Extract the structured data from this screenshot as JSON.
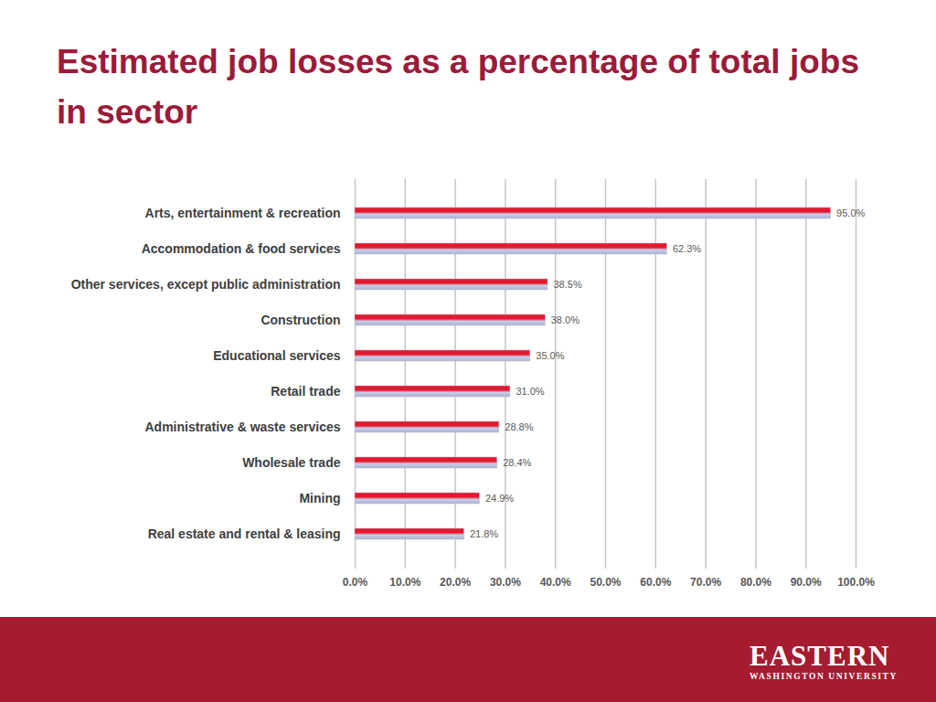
{
  "chart_data": {
    "type": "bar",
    "orientation": "horizontal",
    "title": "Estimated job losses as a percentage of total jobs in sector",
    "categories": [
      "Arts, entertainment & recreation",
      "Accommodation & food services",
      "Other services, except public administration",
      "Construction",
      "Educational services",
      "Retail trade",
      "Administrative & waste services",
      "Wholesale trade",
      "Mining",
      "Real estate and rental & leasing"
    ],
    "values": [
      95.0,
      62.3,
      38.5,
      38.0,
      35.0,
      31.0,
      28.8,
      28.4,
      24.9,
      21.8
    ],
    "value_labels": [
      "95.0%",
      "62.3%",
      "38.5%",
      "38.0%",
      "35.0%",
      "31.0%",
      "28.8%",
      "28.4%",
      "24.9%",
      "21.8%"
    ],
    "data_labels": true,
    "color": "#e3192f",
    "xlim": [
      0,
      100
    ],
    "xticks": [
      {
        "value": 0,
        "label": "0.0%"
      },
      {
        "value": 10,
        "label": "10.0%"
      },
      {
        "value": 20,
        "label": "20.0%"
      },
      {
        "value": 30,
        "label": "30.0%"
      },
      {
        "value": 40,
        "label": "40.0%"
      },
      {
        "value": 50,
        "label": "50.0%"
      },
      {
        "value": 60,
        "label": "60.0%"
      },
      {
        "value": 70,
        "label": "70.0%"
      },
      {
        "value": 80,
        "label": "80.0%"
      },
      {
        "value": 90,
        "label": "90.0%"
      },
      {
        "value": 100,
        "label": "100.0%"
      }
    ],
    "grid": true
  },
  "footer": {
    "logo": "EASTERN",
    "logo_subtitle": "WASHINGTON UNIVERSITY"
  }
}
